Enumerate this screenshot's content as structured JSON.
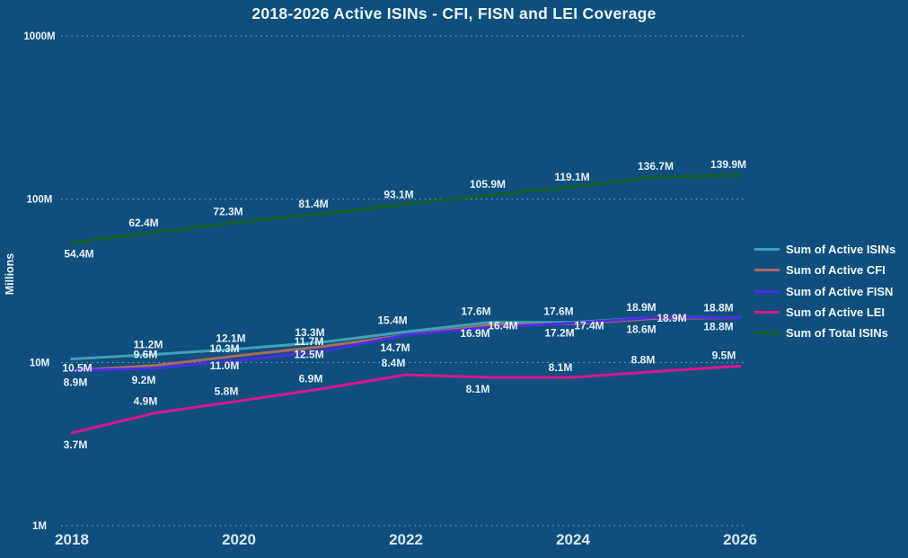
{
  "chart_data": {
    "type": "line",
    "title": "2018-2026 Active ISINs - CFI, FISN and LEI Coverage",
    "ylabel": "Millions",
    "x": [
      2018,
      2019,
      2020,
      2021,
      2022,
      2023,
      2024,
      2025,
      2026
    ],
    "x_tick_labels": [
      "2018",
      "2020",
      "2022",
      "2024",
      "2026"
    ],
    "y_scale": "log",
    "ylim": [
      1,
      1000
    ],
    "y_ticks": [
      {
        "label": "1M",
        "value": 1
      },
      {
        "label": "10M",
        "value": 10
      },
      {
        "label": "100M",
        "value": 100
      },
      {
        "label": "1000M",
        "value": 1000
      }
    ],
    "grid": "horizontal-dotted",
    "legend_position": "right",
    "unit_suffix": "M",
    "series": [
      {
        "name": "Sum of Active ISINs",
        "color": "#3DA3B8",
        "values": [
          10.5,
          11.2,
          12.1,
          13.3,
          15.4,
          17.6,
          17.6,
          18.9,
          18.8
        ]
      },
      {
        "name": "Sum of Active CFI",
        "color": "#A96A60",
        "values": [
          8.9,
          9.6,
          11.0,
          12.5,
          14.7,
          16.9,
          17.2,
          18.6,
          18.8
        ]
      },
      {
        "name": "Sum of Active FISN",
        "color": "#4B2EE3",
        "values": [
          8.9,
          9.2,
          10.3,
          11.7,
          14.7,
          16.4,
          17.4,
          18.9,
          18.8
        ]
      },
      {
        "name": "Sum of Active LEI",
        "color": "#DB1689",
        "values": [
          3.7,
          4.9,
          5.8,
          6.9,
          8.4,
          8.1,
          8.1,
          8.8,
          9.5
        ]
      },
      {
        "name": "Sum of Total ISINs",
        "color": "#166023",
        "values": [
          54.4,
          62.4,
          72.3,
          81.4,
          93.1,
          105.9,
          119.1,
          136.7,
          139.9
        ]
      }
    ],
    "colors": {
      "background": "#104F7D",
      "title_text": "#EDF5FB",
      "data_label_text": "#E8F0F7",
      "axis_text": "#EAF2F8"
    }
  }
}
